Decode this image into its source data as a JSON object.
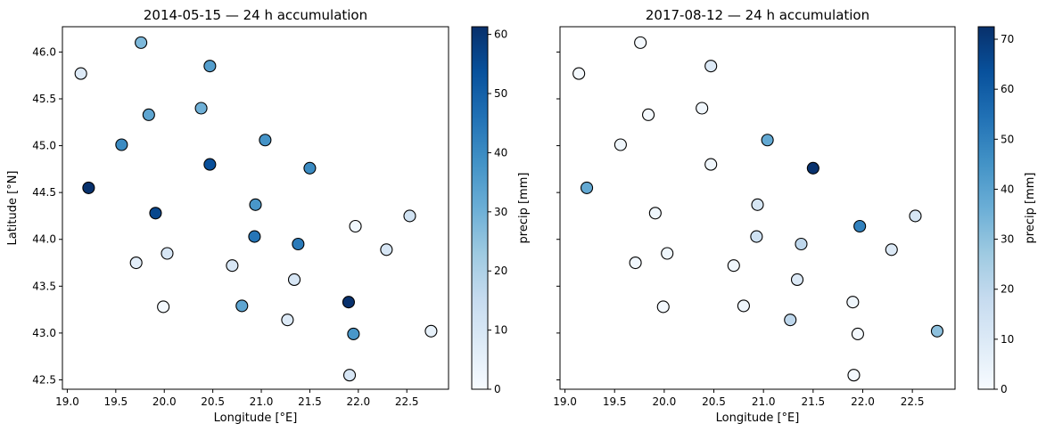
{
  "colors": {
    "colormap": [
      "#f7fbff",
      "#deebf7",
      "#c6dbef",
      "#9ecae1",
      "#6baed6",
      "#4292c6",
      "#2171b5",
      "#08519c",
      "#08306b"
    ],
    "marker_edge": "#000000",
    "axes": "#000000",
    "background": "#ffffff"
  },
  "chart_data": [
    {
      "type": "scatter",
      "title": "2014-05-15 — 24 h accumulation",
      "xlabel": "Longitude [°E]",
      "ylabel": "Latitude [°N]",
      "xlim": [
        18.95,
        22.93
      ],
      "ylim": [
        42.4,
        46.27
      ],
      "xticks": [
        "19.0",
        "19.5",
        "20.0",
        "20.5",
        "21.0",
        "21.5",
        "22.0",
        "22.5"
      ],
      "yticks": [
        "42.5",
        "43.0",
        "43.5",
        "44.0",
        "44.5",
        "45.0",
        "45.5",
        "46.0"
      ],
      "grid": false,
      "colorbar": {
        "label": "precip [mm]",
        "range": [
          0,
          61.3
        ],
        "ticks": [
          "0",
          "10",
          "20",
          "30",
          "40",
          "50",
          "60"
        ]
      },
      "points": [
        {
          "lon": 19.14,
          "lat": 45.77,
          "precip": 8
        },
        {
          "lon": 19.76,
          "lat": 46.1,
          "precip": 28
        },
        {
          "lon": 20.47,
          "lat": 45.85,
          "precip": 35
        },
        {
          "lon": 19.84,
          "lat": 45.33,
          "precip": 33
        },
        {
          "lon": 20.38,
          "lat": 45.4,
          "precip": 30
        },
        {
          "lon": 19.56,
          "lat": 45.01,
          "precip": 40
        },
        {
          "lon": 21.04,
          "lat": 45.06,
          "precip": 38
        },
        {
          "lon": 20.47,
          "lat": 44.8,
          "precip": 54
        },
        {
          "lon": 21.5,
          "lat": 44.76,
          "precip": 40
        },
        {
          "lon": 19.22,
          "lat": 44.55,
          "precip": 61
        },
        {
          "lon": 19.91,
          "lat": 44.28,
          "precip": 56
        },
        {
          "lon": 20.94,
          "lat": 44.37,
          "precip": 37
        },
        {
          "lon": 22.53,
          "lat": 44.25,
          "precip": 12
        },
        {
          "lon": 21.97,
          "lat": 44.14,
          "precip": 2
        },
        {
          "lon": 20.93,
          "lat": 44.03,
          "precip": 45
        },
        {
          "lon": 21.38,
          "lat": 43.95,
          "precip": 44
        },
        {
          "lon": 22.29,
          "lat": 43.89,
          "precip": 10
        },
        {
          "lon": 20.03,
          "lat": 43.85,
          "precip": 10
        },
        {
          "lon": 19.71,
          "lat": 43.75,
          "precip": 6
        },
        {
          "lon": 20.7,
          "lat": 43.72,
          "precip": 10
        },
        {
          "lon": 21.34,
          "lat": 43.57,
          "precip": 10
        },
        {
          "lon": 21.9,
          "lat": 43.33,
          "precip": 61
        },
        {
          "lon": 20.8,
          "lat": 43.29,
          "precip": 33
        },
        {
          "lon": 19.99,
          "lat": 43.28,
          "precip": 1
        },
        {
          "lon": 21.27,
          "lat": 43.14,
          "precip": 8
        },
        {
          "lon": 21.95,
          "lat": 42.99,
          "precip": 37
        },
        {
          "lon": 22.75,
          "lat": 43.02,
          "precip": 5
        },
        {
          "lon": 21.91,
          "lat": 42.55,
          "precip": 10
        }
      ]
    },
    {
      "type": "scatter",
      "title": "2017-08-12 — 24 h accumulation",
      "xlabel": "Longitude [°E]",
      "ylabel": "",
      "xlim": [
        18.95,
        22.93
      ],
      "ylim": [
        42.4,
        46.27
      ],
      "xticks": [
        "19.0",
        "19.5",
        "20.0",
        "20.5",
        "21.0",
        "21.5",
        "22.0",
        "22.5"
      ],
      "yticks": [],
      "grid": false,
      "colorbar": {
        "label": "precip [mm]",
        "range": [
          0,
          72.5
        ],
        "ticks": [
          "0",
          "10",
          "20",
          "30",
          "40",
          "50",
          "60",
          "70"
        ]
      },
      "points": [
        {
          "lon": 19.14,
          "lat": 45.77,
          "precip": 1
        },
        {
          "lon": 19.76,
          "lat": 46.1,
          "precip": 1
        },
        {
          "lon": 20.47,
          "lat": 45.85,
          "precip": 10
        },
        {
          "lon": 19.84,
          "lat": 45.33,
          "precip": 1
        },
        {
          "lon": 20.38,
          "lat": 45.4,
          "precip": 2
        },
        {
          "lon": 19.56,
          "lat": 45.01,
          "precip": 3
        },
        {
          "lon": 21.04,
          "lat": 45.06,
          "precip": 38
        },
        {
          "lon": 20.47,
          "lat": 44.8,
          "precip": 3
        },
        {
          "lon": 21.5,
          "lat": 44.76,
          "precip": 72
        },
        {
          "lon": 19.22,
          "lat": 44.55,
          "precip": 38
        },
        {
          "lon": 19.91,
          "lat": 44.28,
          "precip": 3
        },
        {
          "lon": 20.94,
          "lat": 44.37,
          "precip": 12
        },
        {
          "lon": 22.53,
          "lat": 44.25,
          "precip": 12
        },
        {
          "lon": 21.97,
          "lat": 44.14,
          "precip": 50
        },
        {
          "lon": 20.93,
          "lat": 44.03,
          "precip": 15
        },
        {
          "lon": 21.38,
          "lat": 43.95,
          "precip": 20
        },
        {
          "lon": 22.29,
          "lat": 43.89,
          "precip": 10
        },
        {
          "lon": 20.03,
          "lat": 43.85,
          "precip": 3
        },
        {
          "lon": 19.71,
          "lat": 43.75,
          "precip": 2
        },
        {
          "lon": 20.7,
          "lat": 43.72,
          "precip": 3
        },
        {
          "lon": 21.34,
          "lat": 43.57,
          "precip": 10
        },
        {
          "lon": 21.9,
          "lat": 43.33,
          "precip": 3
        },
        {
          "lon": 20.8,
          "lat": 43.29,
          "precip": 3
        },
        {
          "lon": 19.99,
          "lat": 43.28,
          "precip": 1
        },
        {
          "lon": 21.27,
          "lat": 43.14,
          "precip": 20
        },
        {
          "lon": 21.95,
          "lat": 42.99,
          "precip": 1
        },
        {
          "lon": 22.75,
          "lat": 43.02,
          "precip": 30
        },
        {
          "lon": 21.91,
          "lat": 42.55,
          "precip": 1
        }
      ]
    }
  ]
}
